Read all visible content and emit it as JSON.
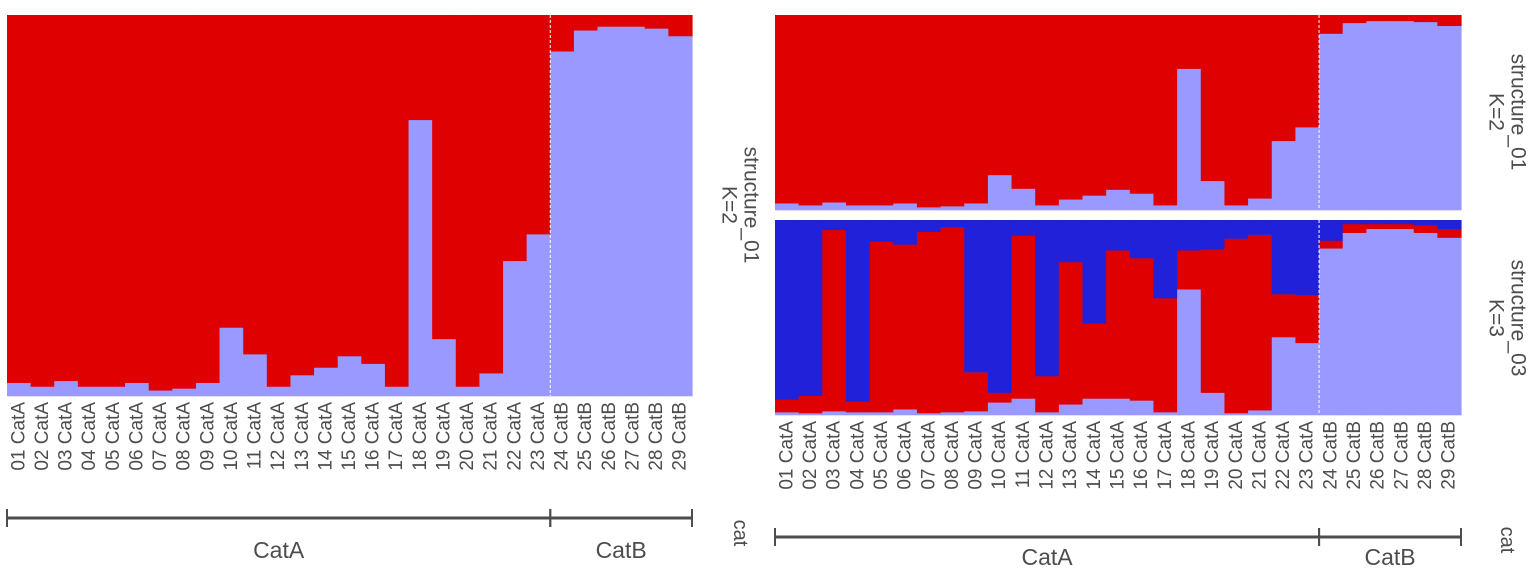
{
  "colors": {
    "cluster1": "#2121d9",
    "cluster2": "#9999ff",
    "cluster3": "#df0101",
    "divider": "#ffffff",
    "bracket": "#4d4d4d",
    "text": "#4d4d4d"
  },
  "chart_data": [
    {
      "type": "bar",
      "stacked": true,
      "ylim": [
        0,
        1
      ],
      "grid": false,
      "categories": [
        "01 CatA",
        "02 CatA",
        "03 CatA",
        "04 CatA",
        "05 CatA",
        "06 CatA",
        "07 CatA",
        "08 CatA",
        "09 CatA",
        "10 CatA",
        "11 CatA",
        "12 CatA",
        "13 CatA",
        "14 CatA",
        "15 CatA",
        "16 CatA",
        "17 CatA",
        "18 CatA",
        "19 CatA",
        "20 CatA",
        "21 CatA",
        "22 CatA",
        "23 CatA",
        "24 CatB",
        "25 CatB",
        "26 CatB",
        "27 CatB",
        "28 CatB",
        "29 CatB"
      ],
      "strip": [
        "structure_01",
        "K=2"
      ],
      "group_label": "cat",
      "groups": [
        {
          "name": "CatA",
          "count": 23
        },
        {
          "name": "CatB",
          "count": 6
        }
      ],
      "series": [
        {
          "values": [
            0.035,
            0.025,
            0.04,
            0.025,
            0.025,
            0.035,
            0.015,
            0.02,
            0.035,
            0.18,
            0.11,
            0.025,
            0.055,
            0.075,
            0.105,
            0.085,
            0.025,
            0.725,
            0.15,
            0.025,
            0.06,
            0.355,
            0.425,
            0.905,
            0.96,
            0.97,
            0.97,
            0.965,
            0.945
          ]
        },
        {
          "values": [
            0.965,
            0.975,
            0.96,
            0.975,
            0.975,
            0.965,
            0.985,
            0.98,
            0.965,
            0.82,
            0.89,
            0.975,
            0.945,
            0.925,
            0.895,
            0.915,
            0.975,
            0.275,
            0.85,
            0.975,
            0.94,
            0.645,
            0.575,
            0.095,
            0.04,
            0.03,
            0.03,
            0.035,
            0.055
          ]
        }
      ]
    },
    {
      "type": "bar",
      "stacked": true,
      "ylim": [
        0,
        1
      ],
      "grid": false,
      "categories": [
        "01 CatA",
        "02 CatA",
        "03 CatA",
        "04 CatA",
        "05 CatA",
        "06 CatA",
        "07 CatA",
        "08 CatA",
        "09 CatA",
        "10 CatA",
        "11 CatA",
        "12 CatA",
        "13 CatA",
        "14 CatA",
        "15 CatA",
        "16 CatA",
        "17 CatA",
        "18 CatA",
        "19 CatA",
        "20 CatA",
        "21 CatA",
        "22 CatA",
        "23 CatA",
        "24 CatB",
        "25 CatB",
        "26 CatB",
        "27 CatB",
        "28 CatB",
        "29 CatB"
      ],
      "group_label": "cat",
      "groups": [
        {
          "name": "CatA",
          "count": 23
        },
        {
          "name": "CatB",
          "count": 6
        }
      ],
      "panels": [
        {
          "strip": [
            "structure_01",
            "K=2"
          ],
          "series": [
            {
              "values": [
                0.035,
                0.025,
                0.04,
                0.025,
                0.025,
                0.035,
                0.015,
                0.02,
                0.035,
                0.18,
                0.11,
                0.025,
                0.055,
                0.075,
                0.105,
                0.085,
                0.025,
                0.725,
                0.15,
                0.025,
                0.06,
                0.355,
                0.425,
                0.905,
                0.96,
                0.97,
                0.97,
                0.965,
                0.945
              ]
            },
            {
              "values": [
                0.965,
                0.975,
                0.96,
                0.975,
                0.975,
                0.965,
                0.985,
                0.98,
                0.965,
                0.82,
                0.89,
                0.975,
                0.945,
                0.925,
                0.895,
                0.915,
                0.975,
                0.275,
                0.85,
                0.975,
                0.94,
                0.645,
                0.575,
                0.095,
                0.04,
                0.03,
                0.03,
                0.035,
                0.055
              ]
            }
          ]
        },
        {
          "strip": [
            "structure_03",
            "K=3"
          ],
          "series": [
            {
              "values": [
                0.015,
                0.01,
                0.02,
                0.015,
                0.015,
                0.03,
                0.01,
                0.015,
                0.02,
                0.065,
                0.085,
                0.015,
                0.055,
                0.085,
                0.085,
                0.075,
                0.015,
                0.645,
                0.115,
                0.01,
                0.025,
                0.4,
                0.37,
                0.855,
                0.935,
                0.955,
                0.955,
                0.935,
                0.91
              ]
            },
            {
              "values": [
                0.065,
                0.09,
                0.93,
                0.055,
                0.875,
                0.845,
                0.93,
                0.95,
                0.2,
                0.05,
                0.835,
                0.185,
                0.73,
                0.385,
                0.76,
                0.73,
                0.585,
                0.2,
                0.735,
                0.895,
                0.9,
                0.22,
                0.245,
                0.04,
                0.045,
                0.025,
                0.025,
                0.04,
                0.045
              ]
            },
            {
              "values": [
                0.92,
                0.9,
                0.05,
                0.93,
                0.11,
                0.125,
                0.06,
                0.035,
                0.78,
                0.885,
                0.08,
                0.8,
                0.215,
                0.53,
                0.155,
                0.195,
                0.4,
                0.155,
                0.15,
                0.095,
                0.075,
                0.38,
                0.385,
                0.105,
                0.02,
                0.02,
                0.02,
                0.025,
                0.045
              ]
            }
          ]
        }
      ]
    }
  ]
}
